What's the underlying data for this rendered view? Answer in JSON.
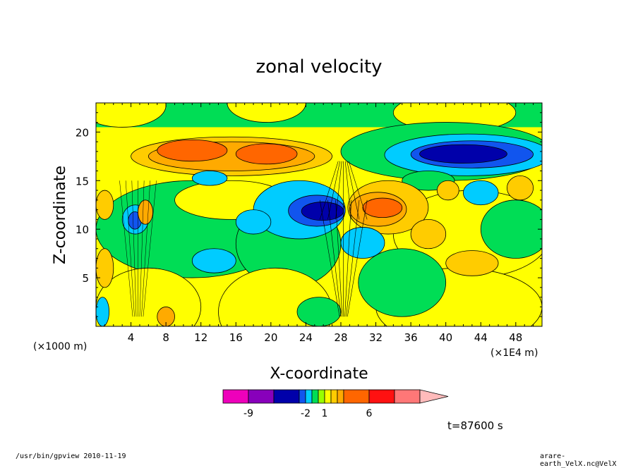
{
  "chart_data": {
    "type": "heatmap",
    "title": "zonal velocity",
    "xlabel": "X-coordinate",
    "ylabel": "Z-coordinate",
    "x_unit_label": "(×1000 m)",
    "x_scale_label": "(×1E4 m)",
    "xlim": [
      0,
      51
    ],
    "ylim": [
      0,
      23
    ],
    "x_ticks": [
      "4",
      "8",
      "12",
      "16",
      "20",
      "24",
      "28",
      "32",
      "36",
      "40",
      "44",
      "48"
    ],
    "x_tick_values": [
      4,
      8,
      12,
      16,
      20,
      24,
      28,
      32,
      36,
      40,
      44,
      48
    ],
    "y_ticks": [
      "5",
      "10",
      "15",
      "20"
    ],
    "y_tick_values": [
      5,
      10,
      15,
      20
    ],
    "time_label": "t=87600 s",
    "colorbar": {
      "colors": [
        "#ee00bb",
        "#8800bb",
        "#0000aa",
        "#1155ee",
        "#00ccff",
        "#00dd55",
        "#99ff00",
        "#ffff00",
        "#ffcc00",
        "#ffaa00",
        "#ff6600",
        "#ff1111",
        "#ff7777",
        "#ffbbbb"
      ],
      "labels": [
        "-9",
        "-2",
        "1",
        "6"
      ]
    },
    "regions": [
      {
        "name": "upper-left positive band",
        "x": [
          7,
          26
        ],
        "z": [
          15.5,
          19.5
        ],
        "level": "orange"
      },
      {
        "name": "upper-right negative band",
        "x": [
          35,
          51
        ],
        "z": [
          15.5,
          19.5
        ],
        "level": "blue"
      },
      {
        "name": "center negative lobe",
        "x": [
          23,
          28.5
        ],
        "z": [
          10,
          14
        ],
        "level": "blue"
      },
      {
        "name": "center positive lobe",
        "x": [
          29,
          36
        ],
        "z": [
          10,
          14
        ],
        "level": "orange"
      }
    ]
  },
  "footer": {
    "left": "/usr/bin/gpview  2010-11-19",
    "right": "arare-earth_VelX.nc@VelX"
  }
}
